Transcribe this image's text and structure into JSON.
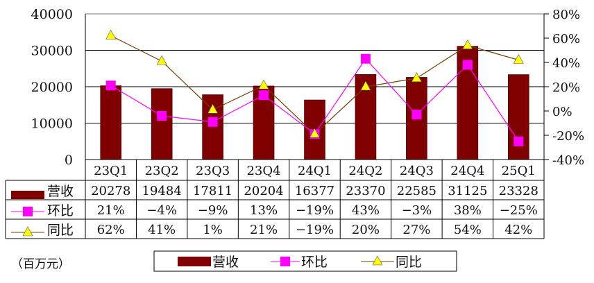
{
  "chart_data": {
    "type": "bar",
    "categories": [
      "23Q1",
      "23Q2",
      "23Q3",
      "23Q4",
      "24Q1",
      "24Q2",
      "24Q3",
      "24Q4",
      "25Q1"
    ],
    "unit_note": "（百万元）",
    "y_left": {
      "ylim": [
        0,
        40000
      ],
      "ticks": [
        "0",
        "10000",
        "20000",
        "30000",
        "40000"
      ]
    },
    "y_right": {
      "ylim": [
        -40,
        80
      ],
      "ticks": [
        "-40%",
        "-20%",
        "0%",
        "20%",
        "40%",
        "60%",
        "80%"
      ]
    },
    "grid": true,
    "legend_position": "bottom",
    "series": [
      {
        "name": "营收",
        "type": "bar",
        "axis": "left",
        "color": "#800000",
        "values": [
          20278,
          19484,
          17811,
          20204,
          16377,
          23370,
          22585,
          31125,
          23328
        ],
        "labels": [
          "20278",
          "19484",
          "17811",
          "20204",
          "16377",
          "23370",
          "22585",
          "31125",
          "23328"
        ]
      },
      {
        "name": "环比",
        "type": "line",
        "axis": "right",
        "color": "#ff00ff",
        "marker": "square",
        "values": [
          21,
          -4,
          -9,
          13,
          -19,
          43,
          -3,
          38,
          -25
        ],
        "labels": [
          "21%",
          "−4%",
          "−9%",
          "13%",
          "−19%",
          "43%",
          "−3%",
          "38%",
          "−25%"
        ]
      },
      {
        "name": "同比",
        "type": "line",
        "axis": "right",
        "color": "#7a3b00",
        "marker": "triangle",
        "marker_color": "#ffff00",
        "values": [
          62,
          41,
          1,
          21,
          -19,
          20,
          27,
          54,
          42
        ],
        "labels": [
          "62%",
          "41%",
          "1%",
          "21%",
          "−19%",
          "20%",
          "27%",
          "54%",
          "42%"
        ]
      }
    ]
  }
}
